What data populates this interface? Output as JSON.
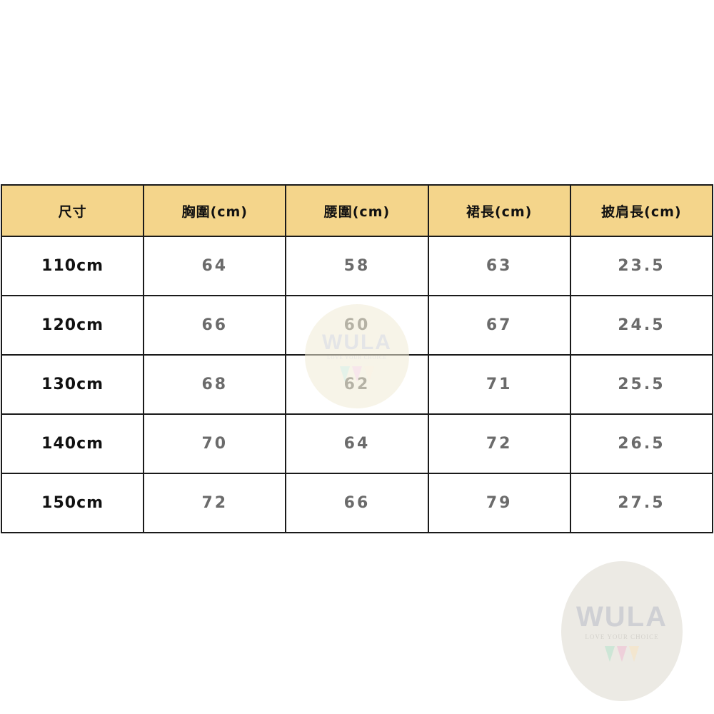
{
  "table": {
    "headers": [
      "尺寸",
      "胸圍(cm)",
      "腰圍(cm)",
      "裙長(cm)",
      "披肩長(cm)"
    ],
    "rows": [
      [
        "110cm",
        "64",
        "58",
        "63",
        "23.5"
      ],
      [
        "120cm",
        "66",
        "60",
        "67",
        "24.5"
      ],
      [
        "130cm",
        "68",
        "62",
        "71",
        "25.5"
      ],
      [
        "140cm",
        "70",
        "64",
        "72",
        "26.5"
      ],
      [
        "150cm",
        "72",
        "66",
        "79",
        "27.5"
      ]
    ]
  },
  "watermark": {
    "brand": "WULA",
    "tagline": "LOVE YOUR CHOICE"
  },
  "colors": {
    "header_bg": "#f4d58b",
    "border": "#1a1a1a",
    "value_text": "#6b6b6b"
  }
}
